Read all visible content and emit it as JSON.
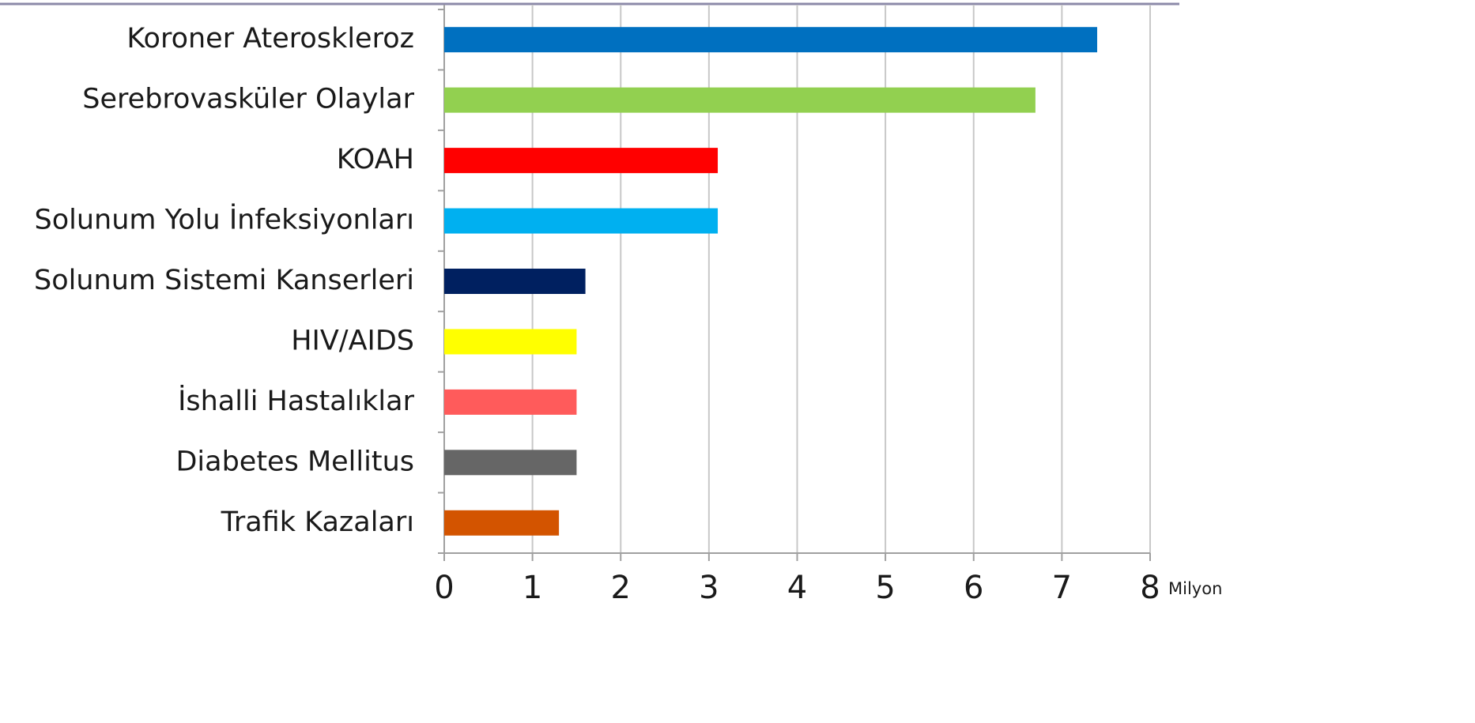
{
  "chart_data": {
    "type": "bar",
    "orientation": "horizontal",
    "categories": [
      "Koroner Ateroskleroz",
      "Serebrovasküler Olaylar",
      "KOAH",
      "Solunum Yolu İnfeksiyonları",
      "Solunum Sistemi Kanserleri",
      "HIV/AIDS",
      "İshalli Hastalıklar",
      "Diabetes Mellitus",
      "Trafik Kazaları"
    ],
    "values": [
      7.4,
      6.7,
      3.1,
      3.1,
      1.6,
      1.5,
      1.5,
      1.5,
      1.3
    ],
    "colors": [
      "#0070c0",
      "#92d050",
      "#ff0000",
      "#00b0f0",
      "#002060",
      "#ffff00",
      "#ff5b5b",
      "#666666",
      "#d35400"
    ],
    "xlabel": "Milyon",
    "xlim": [
      0,
      8
    ],
    "xticks": [
      0,
      1,
      2,
      3,
      4,
      5,
      6,
      7,
      8
    ],
    "grid": true
  }
}
